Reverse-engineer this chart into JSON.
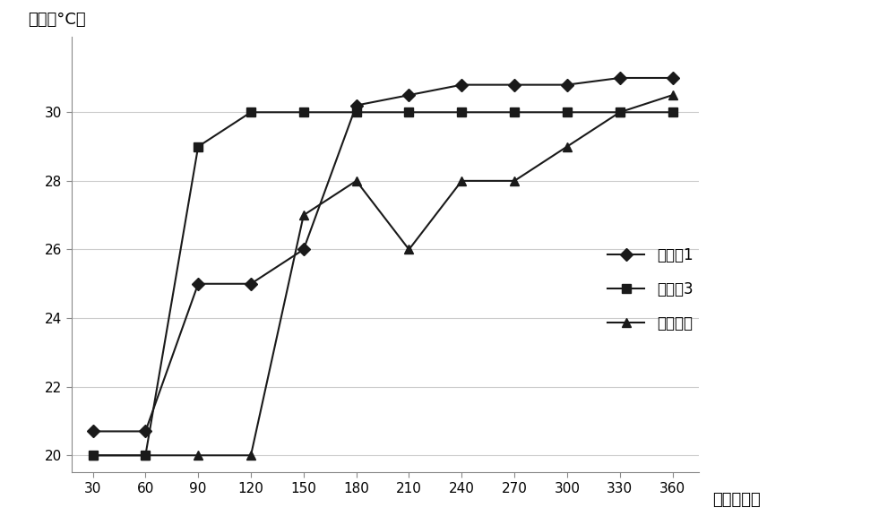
{
  "series": [
    {
      "label": "实施例1",
      "x": [
        30,
        60,
        90,
        120,
        150,
        180,
        210,
        240,
        270,
        300,
        330,
        360
      ],
      "y": [
        20.7,
        20.7,
        25.0,
        25.0,
        26.0,
        30.2,
        30.5,
        30.8,
        30.8,
        30.8,
        31.0,
        31.0
      ],
      "marker": "D",
      "color": "#1a1a1a",
      "markersize": 7,
      "linewidth": 1.5
    },
    {
      "label": "实施例3",
      "x": [
        30,
        60,
        90,
        120,
        150,
        180,
        210,
        240,
        270,
        300,
        330,
        360
      ],
      "y": [
        20.0,
        20.0,
        29.0,
        30.0,
        30.0,
        30.0,
        30.0,
        30.0,
        30.0,
        30.0,
        30.0,
        30.0
      ],
      "marker": "s",
      "color": "#1a1a1a",
      "markersize": 7,
      "linewidth": 1.5
    },
    {
      "label": "现有技术",
      "x": [
        30,
        60,
        90,
        120,
        150,
        180,
        210,
        240,
        270,
        300,
        330,
        360
      ],
      "y": [
        20.0,
        20.0,
        20.0,
        20.0,
        27.0,
        28.0,
        26.0,
        28.0,
        28.0,
        29.0,
        30.0,
        30.5
      ],
      "marker": "^",
      "color": "#1a1a1a",
      "markersize": 7,
      "linewidth": 1.5
    }
  ],
  "xlabel": "时间（秒）",
  "ylabel": "温度（°C）",
  "xlim": [
    18,
    375
  ],
  "ylim": [
    19.5,
    32.2
  ],
  "xticks": [
    30,
    60,
    90,
    120,
    150,
    180,
    210,
    240,
    270,
    300,
    330,
    360
  ],
  "yticks": [
    20,
    22,
    24,
    26,
    28,
    30
  ],
  "background_color": "#ffffff",
  "axis_fontsize": 13,
  "tick_fontsize": 11,
  "legend_fontsize": 12
}
